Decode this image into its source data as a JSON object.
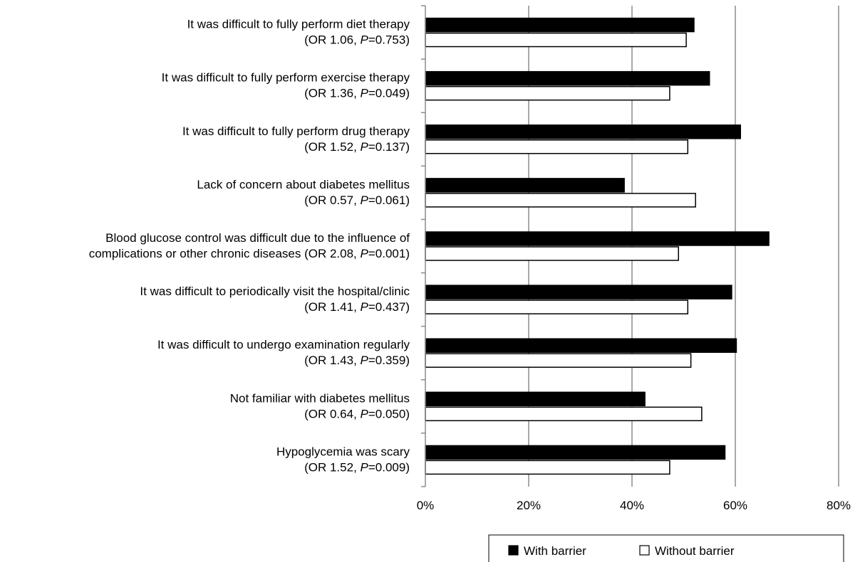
{
  "chart_data": {
    "type": "bar",
    "orientation": "horizontal",
    "categories": [
      {
        "line1": "It was difficult to fully perform diet therapy",
        "or_text": "(OR 1.06, ",
        "p_label": "P",
        "p_value": "=0.753)"
      },
      {
        "line1": "It was difficult to fully perform exercise therapy",
        "or_text": "(OR 1.36, ",
        "p_label": "P",
        "p_value": "=0.049)"
      },
      {
        "line1": "It was difficult to fully perform drug therapy",
        "or_text": "(OR 1.52, ",
        "p_label": "P",
        "p_value": "=0.137)"
      },
      {
        "line1": "Lack of concern about diabetes mellitus",
        "or_text": "(OR 0.57, ",
        "p_label": "P",
        "p_value": "=0.061)"
      },
      {
        "line1": "Blood glucose control was difficult due to the influence of",
        "or_text": "complications or other chronic diseases (OR 2.08, ",
        "p_label": "P",
        "p_value": "=0.001)"
      },
      {
        "line1": "It was difficult to periodically visit the hospital/clinic",
        "or_text": "(OR 1.41, ",
        "p_label": "P",
        "p_value": "=0.437)"
      },
      {
        "line1": "It was difficult to undergo examination regularly",
        "or_text": "(OR 1.43, ",
        "p_label": "P",
        "p_value": "=0.359)"
      },
      {
        "line1": "Not familiar with diabetes mellitus",
        "or_text": "(OR 0.64, ",
        "p_label": "P",
        "p_value": "=0.050)"
      },
      {
        "line1": "Hypoglycemia was scary",
        "or_text": "(OR 1.52, ",
        "p_label": "P",
        "p_value": "=0.009)"
      }
    ],
    "series": [
      {
        "name": "With barrier",
        "color": "#000000",
        "values": [
          52,
          55,
          61,
          38.5,
          66.5,
          59.3,
          60.2,
          42.5,
          58
        ]
      },
      {
        "name": "Without barrier",
        "color": "#ffffff",
        "values": [
          50.5,
          47.3,
          50.8,
          52.3,
          49,
          50.8,
          51.4,
          53.5,
          47.3
        ]
      }
    ],
    "x_ticks": [
      "0%",
      "20%",
      "40%",
      "60%",
      "80%"
    ],
    "xlim": [
      0,
      80
    ],
    "grid": true,
    "legend_position": "bottom"
  }
}
